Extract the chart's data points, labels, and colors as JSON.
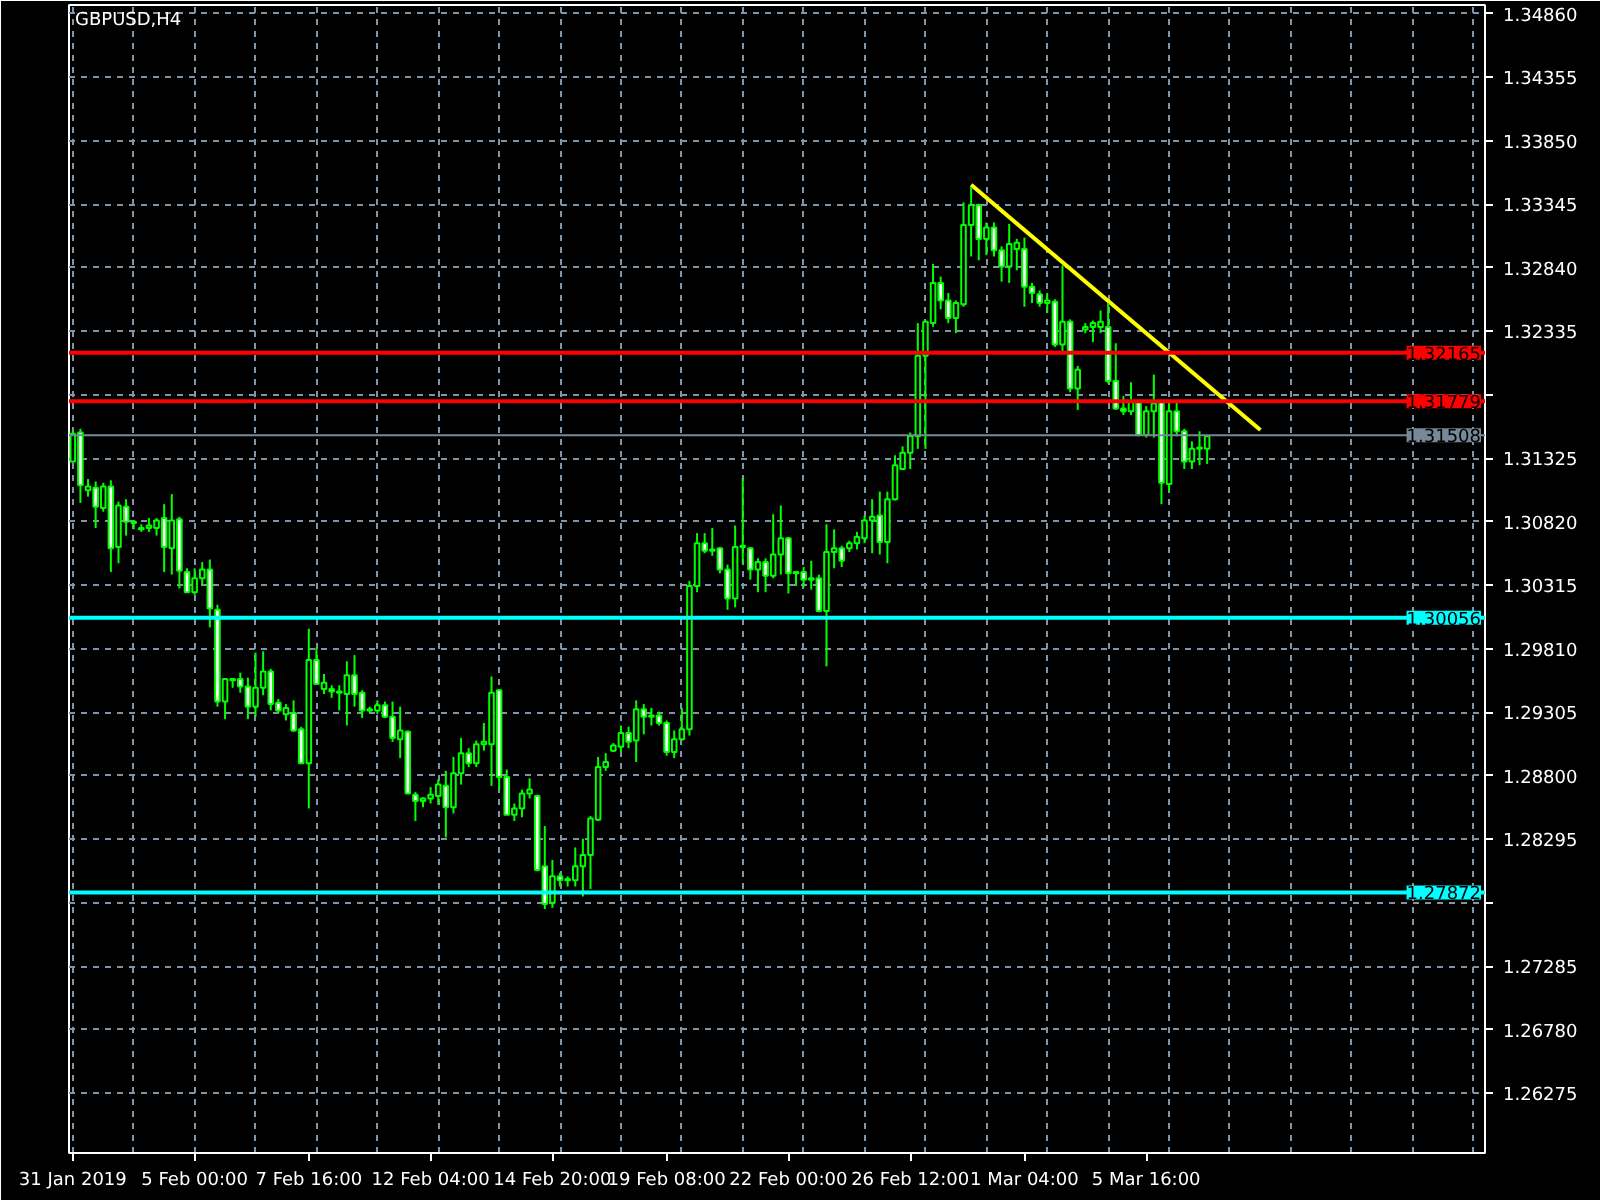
{
  "chart_data": {
    "type": "candlestick",
    "title": "GBPUSD,H4",
    "color": "#00ff00",
    "categories": [
      "31 Jan 2019",
      null,
      null,
      null,
      null,
      null,
      null,
      null,
      null,
      null,
      null,
      null,
      null,
      null,
      null,
      null,
      "5 Feb 00:00",
      null,
      null,
      null,
      null,
      null,
      null,
      null,
      null,
      null,
      null,
      null,
      null,
      null,
      null,
      "7 Feb 16:00",
      null,
      null,
      null,
      null,
      null,
      null,
      null,
      null,
      null,
      null,
      null,
      null,
      null,
      null,
      null,
      "12 Feb 04:00",
      null,
      null,
      null,
      null,
      null,
      null,
      null,
      null,
      null,
      null,
      null,
      null,
      null,
      null,
      null,
      "14 Feb 20:00",
      null,
      null,
      null,
      null,
      null,
      null,
      null,
      null,
      null,
      null,
      null,
      null,
      null,
      null,
      "19 Feb 08:00",
      null,
      null,
      null,
      null,
      null,
      null,
      null,
      null,
      null,
      null,
      null,
      null,
      null,
      null,
      null,
      "22 Feb 00:00",
      null,
      null,
      null,
      null,
      null,
      null,
      null,
      null,
      null,
      null,
      null,
      null,
      null,
      null,
      null,
      "26 Feb 12:00",
      null,
      null,
      null,
      null,
      null,
      null,
      null,
      null,
      null,
      null,
      null,
      null,
      null,
      null,
      "1 Mar 04:00",
      null,
      null,
      null,
      null,
      null,
      null,
      null,
      null,
      null,
      null,
      null,
      null,
      null,
      null,
      null,
      "5 Mar 16:00",
      null,
      null,
      null,
      null,
      null,
      null,
      null,
      null,
      null,
      null,
      null,
      null,
      null,
      null,
      null,
      null,
      null,
      null,
      null,
      null,
      null,
      null,
      null,
      null,
      null,
      null,
      null,
      null,
      null,
      null,
      null,
      null,
      null,
      null,
      null,
      null,
      null,
      null,
      null,
      null,
      null,
      null,
      null,
      null
    ],
    "ohlc": [
      [
        1.313,
        1.3155,
        1.3129,
        1.3152
      ],
      [
        1.3153,
        1.3156,
        1.3097,
        1.3111
      ],
      [
        1.3107,
        1.3116,
        1.3102,
        1.311
      ],
      [
        1.3109,
        1.3114,
        1.3077,
        1.3094
      ],
      [
        1.3093,
        1.3113,
        1.309,
        1.311
      ],
      [
        1.311,
        1.3115,
        1.3042,
        1.3061
      ],
      [
        1.3062,
        1.3098,
        1.3049,
        1.3095
      ],
      [
        1.3094,
        1.31,
        1.3071,
        1.3082
      ],
      [
        1.3082,
        1.3083,
        1.3076,
        1.3081
      ],
      [
        1.3077,
        1.308,
        1.3074,
        1.3076
      ],
      [
        1.3077,
        1.3085,
        1.3074,
        1.3079
      ],
      [
        1.3077,
        1.3085,
        1.3071,
        1.3083
      ],
      [
        1.3085,
        1.3096,
        1.3042,
        1.3062
      ],
      [
        1.3061,
        1.3104,
        1.304,
        1.3083
      ],
      [
        1.3084,
        1.3086,
        1.3029,
        1.3043
      ],
      [
        1.3042,
        1.3045,
        1.3026,
        1.3026
      ],
      [
        1.3026,
        1.3045,
        1.3024,
        1.3037
      ],
      [
        1.3037,
        1.305,
        1.3032,
        1.3044
      ],
      [
        1.3044,
        1.3052,
        1.2998,
        1.3013
      ],
      [
        1.3012,
        1.3016,
        1.2935,
        1.2939
      ],
      [
        1.2939,
        1.2957,
        1.2925,
        1.2957
      ],
      [
        1.2957,
        1.2957,
        1.295,
        1.2956
      ],
      [
        1.2957,
        1.2962,
        1.2946,
        1.2951
      ],
      [
        1.2951,
        1.2958,
        1.2925,
        1.2935
      ],
      [
        1.2935,
        1.2978,
        1.2927,
        1.295
      ],
      [
        1.295,
        1.2979,
        1.2944,
        1.2963
      ],
      [
        1.2963,
        1.2965,
        1.2932,
        1.2937
      ],
      [
        1.2938,
        1.2941,
        1.293,
        1.2932
      ],
      [
        1.2929,
        1.2937,
        1.2924,
        1.2934
      ],
      [
        1.293,
        1.294,
        1.2915,
        1.2916
      ],
      [
        1.2917,
        1.2919,
        1.289,
        1.289
      ],
      [
        1.289,
        1.2997,
        1.2854,
        1.2972
      ],
      [
        1.2972,
        1.2982,
        1.2953,
        1.2953
      ],
      [
        1.2949,
        1.2961,
        1.2945,
        1.2954
      ],
      [
        1.2949,
        1.2952,
        1.2942,
        1.2947
      ],
      [
        1.2947,
        1.2952,
        1.2932,
        1.2946
      ],
      [
        1.2945,
        1.2971,
        1.292,
        1.296
      ],
      [
        1.296,
        1.2976,
        1.2935,
        1.2945
      ],
      [
        1.2946,
        1.2948,
        1.2926,
        1.2932
      ],
      [
        1.2932,
        1.2935,
        1.293,
        1.2933
      ],
      [
        1.2932,
        1.294,
        1.2929,
        1.2936
      ],
      [
        1.2936,
        1.2939,
        1.2926,
        1.2927
      ],
      [
        1.2927,
        1.2939,
        1.2907,
        1.291
      ],
      [
        1.2909,
        1.2935,
        1.2894,
        1.2916
      ],
      [
        1.2915,
        1.2916,
        1.2866,
        1.2866
      ],
      [
        1.2865,
        1.2867,
        1.2844,
        1.286
      ],
      [
        1.286,
        1.2863,
        1.2855,
        1.2862
      ],
      [
        1.2862,
        1.2871,
        1.2858,
        1.2865
      ],
      [
        1.2864,
        1.2877,
        1.2857,
        1.2873
      ],
      [
        1.2872,
        1.2884,
        1.2831,
        1.2855
      ],
      [
        1.2855,
        1.2895,
        1.285,
        1.2882
      ],
      [
        1.2882,
        1.291,
        1.2873,
        1.2898
      ],
      [
        1.2898,
        1.2902,
        1.2887,
        1.289
      ],
      [
        1.289,
        1.2908,
        1.2887,
        1.2905
      ],
      [
        1.2905,
        1.2922,
        1.29,
        1.2907
      ],
      [
        1.2905,
        1.2959,
        1.2872,
        1.2946
      ],
      [
        1.2948,
        1.2949,
        1.2869,
        1.2879
      ],
      [
        1.2879,
        1.2885,
        1.2849,
        1.2849
      ],
      [
        1.2849,
        1.2858,
        1.2844,
        1.2854
      ],
      [
        1.2854,
        1.2869,
        1.2847,
        1.2866
      ],
      [
        1.2866,
        1.2878,
        1.2862,
        1.2869
      ],
      [
        1.2864,
        1.2865,
        1.2804,
        1.2805
      ],
      [
        1.2808,
        1.284,
        1.2774,
        1.2778
      ],
      [
        1.2779,
        1.2813,
        1.2775,
        1.28
      ],
      [
        1.28,
        1.2803,
        1.2792,
        1.2797
      ],
      [
        1.2797,
        1.28,
        1.2792,
        1.2798
      ],
      [
        1.2797,
        1.2823,
        1.2792,
        1.2808
      ],
      [
        1.2808,
        1.283,
        1.2784,
        1.2817
      ],
      [
        1.2817,
        1.2848,
        1.279,
        1.2846
      ],
      [
        1.2845,
        1.2895,
        1.2844,
        1.2887
      ],
      [
        1.2887,
        1.2898,
        1.2884,
        1.2891
      ],
      [
        1.29,
        1.2906,
        1.2899,
        1.2904
      ],
      [
        1.2903,
        1.292,
        1.2899,
        1.2914
      ],
      [
        1.2914,
        1.2919,
        1.2902,
        1.2907
      ],
      [
        1.2908,
        1.294,
        1.2891,
        1.2933
      ],
      [
        1.2933,
        1.2937,
        1.2913,
        1.2927
      ],
      [
        1.2927,
        1.2934,
        1.292,
        1.2928
      ],
      [
        1.2928,
        1.2931,
        1.292,
        1.2922
      ],
      [
        1.2922,
        1.2924,
        1.2896,
        1.2899
      ],
      [
        1.2899,
        1.2916,
        1.2894,
        1.2909
      ],
      [
        1.2909,
        1.2934,
        1.2908,
        1.2917
      ],
      [
        1.2917,
        1.3035,
        1.2912,
        1.3031
      ],
      [
        1.3031,
        1.3073,
        1.3026,
        1.3065
      ],
      [
        1.3065,
        1.3073,
        1.3057,
        1.3059
      ],
      [
        1.3059,
        1.3077,
        1.3055,
        1.306
      ],
      [
        1.3061,
        1.3062,
        1.3041,
        1.3044
      ],
      [
        1.3044,
        1.3048,
        1.3012,
        1.3021
      ],
      [
        1.3021,
        1.3079,
        1.3014,
        1.3062
      ],
      [
        1.3062,
        1.3117,
        1.3049,
        1.3063
      ],
      [
        1.3061,
        1.3062,
        1.3036,
        1.3044
      ],
      [
        1.3044,
        1.3053,
        1.3026,
        1.305
      ],
      [
        1.305,
        1.3053,
        1.3026,
        1.3039
      ],
      [
        1.3039,
        1.3088,
        1.3037,
        1.3056
      ],
      [
        1.3056,
        1.3095,
        1.304,
        1.3069
      ],
      [
        1.3069,
        1.307,
        1.3025,
        1.3041
      ],
      [
        1.3041,
        1.3043,
        1.3031,
        1.3042
      ],
      [
        1.3042,
        1.3046,
        1.303,
        1.3036
      ],
      [
        1.3036,
        1.3051,
        1.3028,
        1.3037
      ],
      [
        1.3037,
        1.304,
        1.301,
        1.3011
      ],
      [
        1.3011,
        1.308,
        1.2967,
        1.3058
      ],
      [
        1.3058,
        1.3076,
        1.3045,
        1.3061
      ],
      [
        1.3061,
        1.3063,
        1.3046,
        1.3051
      ],
      [
        1.3061,
        1.3067,
        1.3058,
        1.3065
      ],
      [
        1.3065,
        1.3074,
        1.306,
        1.307
      ],
      [
        1.3069,
        1.3087,
        1.3065,
        1.3083
      ],
      [
        1.3083,
        1.31,
        1.3057,
        1.3086
      ],
      [
        1.3087,
        1.3106,
        1.3056,
        1.3066
      ],
      [
        1.3066,
        1.3106,
        1.3049,
        1.31
      ],
      [
        1.31,
        1.3135,
        1.3099,
        1.3127
      ],
      [
        1.3124,
        1.3142,
        1.3123,
        1.3137
      ],
      [
        1.3137,
        1.3153,
        1.3124,
        1.315
      ],
      [
        1.315,
        1.324,
        1.314,
        1.3214
      ],
      [
        1.3214,
        1.3241,
        1.314,
        1.3241
      ],
      [
        1.324,
        1.3287,
        1.3237,
        1.3272
      ],
      [
        1.3272,
        1.3277,
        1.3251,
        1.3258
      ],
      [
        1.3258,
        1.3264,
        1.324,
        1.3244
      ],
      [
        1.3244,
        1.3258,
        1.3232,
        1.3256
      ],
      [
        1.3255,
        1.3336,
        1.3253,
        1.3318
      ],
      [
        1.3318,
        1.3348,
        1.3293,
        1.3334
      ],
      [
        1.3334,
        1.3335,
        1.329,
        1.3307
      ],
      [
        1.3307,
        1.332,
        1.3294,
        1.3316
      ],
      [
        1.3316,
        1.332,
        1.3293,
        1.3298
      ],
      [
        1.3298,
        1.3301,
        1.3273,
        1.3285
      ],
      [
        1.3285,
        1.3319,
        1.3272,
        1.3303
      ],
      [
        1.3299,
        1.3307,
        1.3282,
        1.3304
      ],
      [
        1.3299,
        1.3308,
        1.3253,
        1.3269
      ],
      [
        1.3269,
        1.3272,
        1.3256,
        1.3264
      ],
      [
        1.3263,
        1.3266,
        1.3253,
        1.3256
      ],
      [
        1.3256,
        1.3264,
        1.3248,
        1.3258
      ],
      [
        1.3257,
        1.3259,
        1.3221,
        1.3223
      ],
      [
        1.3223,
        1.3286,
        1.3217,
        1.3241
      ],
      [
        1.3241,
        1.3243,
        1.3185,
        1.3188
      ],
      [
        1.3188,
        1.3206,
        1.3171,
        1.3203
      ],
      [
        1.3235,
        1.324,
        1.3232,
        1.3237
      ],
      [
        1.3237,
        1.3242,
        1.3225,
        1.324
      ],
      [
        1.3237,
        1.325,
        1.3232,
        1.3241
      ],
      [
        1.3237,
        1.3256,
        1.3192,
        1.3194
      ],
      [
        1.3194,
        1.3224,
        1.3171,
        1.3172
      ],
      [
        1.3172,
        1.3182,
        1.3167,
        1.317
      ],
      [
        1.317,
        1.3193,
        1.3167,
        1.3178
      ],
      [
        1.3177,
        1.3179,
        1.315,
        1.3151
      ],
      [
        1.3151,
        1.3174,
        1.3149,
        1.317
      ],
      [
        1.317,
        1.3199,
        1.3149,
        1.3176
      ],
      [
        1.3177,
        1.3179,
        1.3096,
        1.3113
      ],
      [
        1.3112,
        1.3178,
        1.3106,
        1.317
      ],
      [
        1.317,
        1.3178,
        1.315,
        1.3154
      ],
      [
        1.3154,
        1.3156,
        1.3124,
        1.313
      ],
      [
        1.313,
        1.3146,
        1.3124,
        1.314
      ],
      [
        1.314,
        1.3154,
        1.3127,
        1.3141
      ],
      [
        1.314,
        1.3151,
        1.3128,
        1.315
      ],
      null,
      null,
      null,
      null,
      null,
      null,
      null,
      null,
      null,
      null,
      null,
      null,
      null,
      null,
      null,
      null,
      null,
      null,
      null,
      null,
      null,
      null,
      null,
      null,
      null,
      null,
      null,
      null,
      null,
      null,
      null,
      null,
      null,
      null,
      null,
      null
    ],
    "series": [
      {
        "type": "line",
        "color": "#ffff00",
        "values": [
          null,
          null,
          null,
          null,
          null,
          null,
          null,
          null,
          null,
          null,
          null,
          null,
          null,
          null,
          null,
          null,
          null,
          null,
          null,
          null,
          null,
          null,
          null,
          null,
          null,
          null,
          null,
          null,
          null,
          null,
          null,
          null,
          null,
          null,
          null,
          null,
          null,
          null,
          null,
          null,
          null,
          null,
          null,
          null,
          null,
          null,
          null,
          null,
          null,
          null,
          null,
          null,
          null,
          null,
          null,
          null,
          null,
          null,
          null,
          null,
          null,
          null,
          null,
          null,
          null,
          null,
          null,
          null,
          null,
          null,
          null,
          null,
          null,
          null,
          null,
          null,
          null,
          null,
          null,
          null,
          null,
          null,
          null,
          null,
          null,
          null,
          null,
          null,
          null,
          null,
          null,
          null,
          null,
          null,
          null,
          null,
          null,
          null,
          null,
          null,
          null,
          null,
          null,
          null,
          null,
          null,
          null,
          null,
          null,
          null,
          null,
          null,
          null,
          null,
          null,
          null,
          null,
          null,
          1.335,
          null,
          null,
          null,
          null,
          null,
          null,
          null,
          null,
          null,
          null,
          null,
          null,
          null,
          null,
          null,
          null,
          null,
          null,
          null,
          null,
          null,
          null,
          null,
          null,
          null,
          null,
          null,
          null,
          null,
          null,
          null,
          null,
          null,
          null,
          null,
          null,
          null,
          1.3155,
          null,
          null,
          null,
          null,
          null,
          null,
          null,
          null,
          null,
          null,
          null,
          null,
          null,
          null,
          null,
          null,
          null,
          null,
          null,
          null,
          null,
          null,
          null,
          null,
          null,
          null,
          null,
          null,
          null
        ]
      }
    ],
    "ylim": [
      1.258,
      1.3493
    ],
    "yticks": [
      {
        "value": 1.3486,
        "label": "1.34860"
      },
      {
        "value": 1.34355,
        "label": "1.34355"
      },
      {
        "value": 1.3385,
        "label": "1.33850"
      },
      {
        "value": 1.33345,
        "label": "1.33345"
      },
      {
        "value": 1.3284,
        "label": "1.32840"
      },
      {
        "value": 1.32335,
        "label": "1.32335"
      },
      {
        "value": 1.3183,
        "label": null
      },
      {
        "value": 1.31325,
        "label": "1.31325"
      },
      {
        "value": 1.3082,
        "label": "1.30820"
      },
      {
        "value": 1.30315,
        "label": "1.30315"
      },
      {
        "value": 1.2981,
        "label": "1.29810"
      },
      {
        "value": 1.29305,
        "label": "1.29305"
      },
      {
        "value": 1.288,
        "label": "1.28800"
      },
      {
        "value": 1.28295,
        "label": "1.28295"
      },
      {
        "value": 1.2779,
        "label": null
      },
      {
        "value": 1.27285,
        "label": "1.27285"
      },
      {
        "value": 1.2678,
        "label": "1.26780"
      },
      {
        "value": 1.26275,
        "label": "1.26275"
      }
    ],
    "ref_lines": [
      {
        "axis": "y",
        "value": 1.32165,
        "label": "1.32165",
        "color": "#ff0000"
      },
      {
        "axis": "y",
        "value": 1.31779,
        "label": "1.31779",
        "color": "#ff0000"
      },
      {
        "axis": "y",
        "value": 1.31508,
        "label": "1.31508",
        "color": "#778899"
      },
      {
        "axis": "y",
        "value": 1.30056,
        "label": "1.30056",
        "color": "#00ffff"
      },
      {
        "axis": "y",
        "value": 1.27872,
        "label": "1.27872",
        "color": "#00ffff"
      }
    ],
    "grid": true
  }
}
